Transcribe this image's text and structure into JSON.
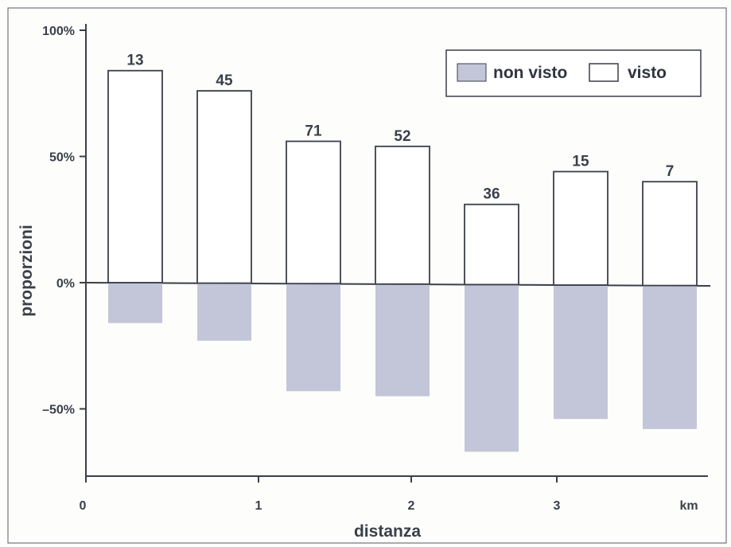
{
  "chart_data": {
    "type": "bar",
    "stacking": "diverging",
    "categories": [
      "",
      "",
      "",
      "",
      "",
      "",
      ""
    ],
    "bar_labels": [
      "13",
      "45",
      "71",
      "52",
      "36",
      "15",
      "7"
    ],
    "series": [
      {
        "name": "visto",
        "values": [
          84,
          76,
          56,
          54,
          31,
          44,
          40
        ]
      },
      {
        "name": "non visto",
        "values": [
          -16,
          -23,
          -43,
          -45,
          -67,
          -54,
          -58
        ]
      }
    ],
    "xlabel": "distanza",
    "ylabel": "proporzioni",
    "ylim": [
      -75,
      100
    ],
    "y_ticks": [
      {
        "value": 100,
        "label": "100%"
      },
      {
        "value": 50,
        "label": "50%"
      },
      {
        "value": 0,
        "label": "0%"
      },
      {
        "value": -50,
        "label": "–50%"
      }
    ],
    "x_ticks": [
      "0",
      "1",
      "2",
      "3"
    ],
    "x_unit_label": "km",
    "legend": {
      "position": "top-right",
      "entries": [
        {
          "label": "non visto",
          "color": "#c3c6d8"
        },
        {
          "label": "visto",
          "color": "#ffffff"
        }
      ]
    },
    "grid": false
  },
  "colors": {
    "axis": "#3a3f4a",
    "frame": "#555a66",
    "visto_fill": "#ffffff",
    "non_visto_fill": "#c3c6d8"
  }
}
